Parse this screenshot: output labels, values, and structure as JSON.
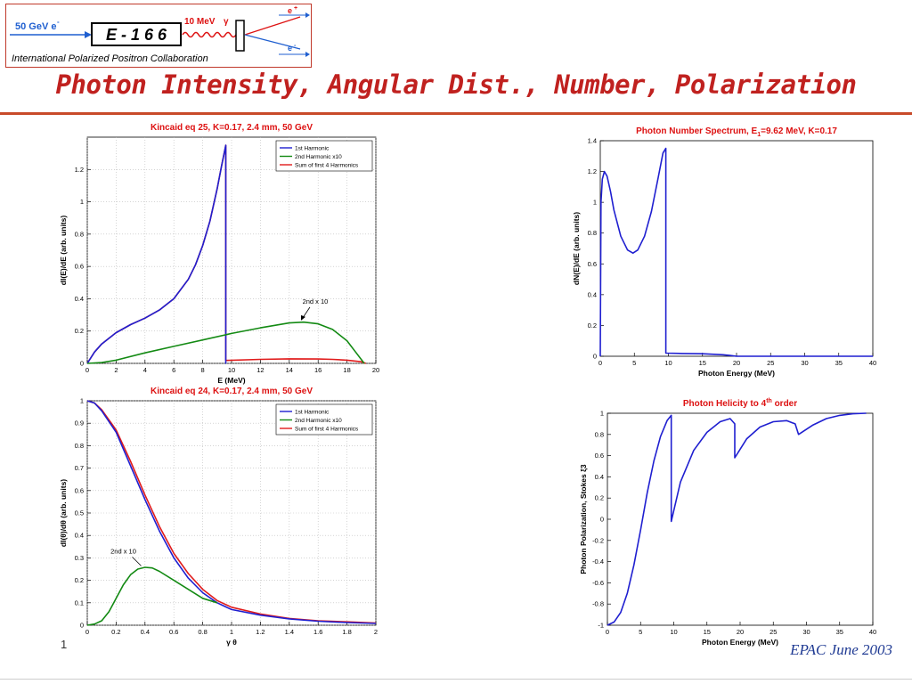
{
  "header": {
    "beam_label": "50 GeV e",
    "beam_sup": "-",
    "experiment": "E - 1 6 6",
    "photon_label": "10 MeV",
    "photon_sym": "γ",
    "positron": "e",
    "positron_sup": "+",
    "electron": "e",
    "electron_sup": "-",
    "collaboration": "International Polarized Positron Collaboration",
    "title": "Photon Intensity, Angular Dist., Number, Polarization"
  },
  "footer": {
    "page": "1",
    "event": "EPAC June 2003"
  },
  "colors": {
    "blue": "#1f1fd0",
    "green": "#138a13",
    "red": "#e01b1b",
    "title_red": "#c0211f"
  },
  "chart_data": [
    {
      "type": "line",
      "title": "Kincaid eq 25, K=0.17, 2.4 mm, 50 GeV",
      "xlabel": "E (MeV)",
      "ylabel": "dI(E)/dE (arb. units)",
      "xlim": [
        0,
        20
      ],
      "ylim": [
        0,
        1.4
      ],
      "xticks": [
        0,
        2,
        4,
        6,
        8,
        10,
        12,
        14,
        16,
        18,
        20
      ],
      "yticks": [
        0,
        0.2,
        0.4,
        0.6,
        0.8,
        1,
        1.2
      ],
      "grid": true,
      "legend_placement": "top-right",
      "legend": [
        {
          "text": "1st Harmonic",
          "color": "#1f1fd0"
        },
        {
          "text": "2nd Harmonic x10",
          "color": "#138a13"
        },
        {
          "text": "Sum of first 4 Harmonics",
          "color": "#e01b1b"
        }
      ],
      "annotation": {
        "text": "2nd x 10",
        "x": 15.8,
        "y": 0.37
      },
      "series": [
        {
          "color": "#e01b1b",
          "x": [
            0,
            0.5,
            1,
            2,
            3,
            4,
            5,
            6,
            7,
            7.5,
            8,
            8.5,
            9,
            9.3,
            9.6,
            9.6,
            9.62,
            12,
            14,
            16,
            17,
            18,
            19,
            19.3
          ],
          "y": [
            0,
            0.07,
            0.12,
            0.19,
            0.24,
            0.28,
            0.33,
            0.4,
            0.52,
            0.61,
            0.73,
            0.88,
            1.08,
            1.22,
            1.35,
            0.02,
            0.018,
            0.025,
            0.028,
            0.027,
            0.025,
            0.02,
            0.01,
            0
          ]
        },
        {
          "color": "#1f1fd0",
          "x": [
            0,
            0.5,
            1,
            2,
            3,
            4,
            5,
            6,
            7,
            7.5,
            8,
            8.5,
            9,
            9.3,
            9.6,
            9.6,
            9.62
          ],
          "y": [
            0,
            0.07,
            0.12,
            0.19,
            0.24,
            0.28,
            0.33,
            0.4,
            0.52,
            0.61,
            0.73,
            0.88,
            1.08,
            1.22,
            1.35,
            0,
            0
          ]
        },
        {
          "color": "#138a13",
          "x": [
            0,
            1,
            2,
            4,
            6,
            8,
            10,
            12,
            14,
            15,
            16,
            17,
            18,
            18.6,
            19.2
          ],
          "y": [
            0,
            0.005,
            0.02,
            0.065,
            0.105,
            0.145,
            0.185,
            0.22,
            0.25,
            0.255,
            0.245,
            0.21,
            0.14,
            0.07,
            0
          ]
        }
      ]
    },
    {
      "type": "line",
      "title": "Photon Number Spectrum, E1=9.62 MeV, K=0.17",
      "title_main": "Photon Number Spectrum, E",
      "title_sub": "1",
      "title_rest": "=9.62 MeV, K=0.17",
      "xlabel": "Photon Energy (MeV)",
      "ylabel": "dN(E)/dE (arb. units)",
      "xlim": [
        0,
        40
      ],
      "ylim": [
        0,
        1.4
      ],
      "xticks": [
        0,
        5,
        10,
        15,
        20,
        25,
        30,
        35,
        40
      ],
      "yticks": [
        0,
        0.2,
        0.4,
        0.6,
        0.8,
        1,
        1.2,
        1.4
      ],
      "grid": false,
      "series": [
        {
          "color": "#1f1fd0",
          "x": [
            0,
            0.1,
            0.3,
            0.6,
            1,
            1.5,
            2,
            3,
            4,
            4.8,
            5.5,
            6.5,
            7.5,
            8.5,
            9.2,
            9.62,
            9.62,
            12,
            15,
            18,
            19,
            20,
            40
          ],
          "y": [
            0,
            1.0,
            1.15,
            1.2,
            1.17,
            1.07,
            0.95,
            0.78,
            0.69,
            0.67,
            0.69,
            0.78,
            0.94,
            1.16,
            1.32,
            1.35,
            0.02,
            0.018,
            0.016,
            0.01,
            0.005,
            0,
            0
          ]
        }
      ]
    },
    {
      "type": "line",
      "title": "Kincaid eq 24, K=0.17, 2.4 mm, 50 GeV",
      "xlabel": "γ θ",
      "ylabel": "dI(θ)/dθ (arb. units)",
      "xlim": [
        0,
        2
      ],
      "ylim": [
        0,
        1
      ],
      "xticks": [
        0,
        0.2,
        0.4,
        0.6,
        0.8,
        1,
        1.2,
        1.4,
        1.6,
        1.8,
        2
      ],
      "yticks": [
        0,
        0.1,
        0.2,
        0.3,
        0.4,
        0.5,
        0.6,
        0.7,
        0.8,
        0.9,
        1
      ],
      "grid": true,
      "legend_placement": "top-right",
      "legend": [
        {
          "text": "1st Harmonic",
          "color": "#1f1fd0"
        },
        {
          "text": "2nd Harmonic x10",
          "color": "#138a13"
        },
        {
          "text": "Sum of first 4 Harmonics",
          "color": "#e01b1b"
        }
      ],
      "annotation": {
        "text": "2nd x 10",
        "x": 0.25,
        "y": 0.32
      },
      "series": [
        {
          "color": "#e01b1b",
          "x": [
            0,
            0.05,
            0.1,
            0.2,
            0.3,
            0.4,
            0.5,
            0.6,
            0.7,
            0.8,
            0.9,
            1.0,
            1.2,
            1.4,
            1.6,
            1.8,
            2.0
          ],
          "y": [
            1,
            0.99,
            0.96,
            0.87,
            0.73,
            0.58,
            0.44,
            0.32,
            0.23,
            0.16,
            0.11,
            0.08,
            0.05,
            0.03,
            0.02,
            0.015,
            0.01
          ]
        },
        {
          "color": "#1f1fd0",
          "x": [
            0,
            0.05,
            0.1,
            0.2,
            0.3,
            0.4,
            0.5,
            0.6,
            0.7,
            0.8,
            0.9,
            1.0,
            1.2,
            1.4,
            1.6,
            1.8,
            2.0
          ],
          "y": [
            1,
            0.99,
            0.955,
            0.86,
            0.71,
            0.56,
            0.42,
            0.3,
            0.21,
            0.145,
            0.1,
            0.07,
            0.045,
            0.028,
            0.018,
            0.012,
            0.008
          ]
        },
        {
          "color": "#138a13",
          "x": [
            0,
            0.05,
            0.1,
            0.15,
            0.2,
            0.25,
            0.3,
            0.35,
            0.4,
            0.45,
            0.5,
            0.6,
            0.7,
            0.8,
            0.9
          ],
          "y": [
            0,
            0.005,
            0.02,
            0.06,
            0.12,
            0.18,
            0.225,
            0.25,
            0.258,
            0.255,
            0.24,
            0.2,
            0.16,
            0.12,
            0.1
          ]
        }
      ]
    },
    {
      "type": "line",
      "title": "Photon Helicity to 4th order",
      "title_main": "Photon Helicity to 4",
      "title_sup": "th",
      "title_rest": " order",
      "xlabel": "Photon Energy (MeV)",
      "ylabel": "Photon Polarization, Stokes ξ3",
      "xlim": [
        0,
        40
      ],
      "ylim": [
        -1,
        1
      ],
      "xticks": [
        0,
        5,
        10,
        15,
        20,
        25,
        30,
        35,
        40
      ],
      "yticks": [
        -1,
        -0.8,
        -0.6,
        -0.4,
        -0.2,
        0,
        0.2,
        0.4,
        0.6,
        0.8,
        1
      ],
      "grid": false,
      "series": [
        {
          "color": "#1f1fd0",
          "x": [
            0,
            1,
            2,
            3,
            4,
            5,
            6,
            7,
            8,
            9,
            9.62,
            9.62,
            11,
            13,
            15,
            17,
            18.5,
            19.2,
            19.2,
            21,
            23,
            25,
            27,
            28.3,
            28.8,
            28.8,
            31,
            33,
            35,
            37,
            39
          ],
          "y": [
            -1,
            -0.97,
            -0.88,
            -0.7,
            -0.43,
            -0.1,
            0.25,
            0.55,
            0.78,
            0.93,
            0.98,
            -0.02,
            0.35,
            0.65,
            0.82,
            0.92,
            0.95,
            0.9,
            0.58,
            0.76,
            0.87,
            0.92,
            0.93,
            0.9,
            0.8,
            0.8,
            0.89,
            0.95,
            0.98,
            0.995,
            1.0
          ]
        }
      ]
    }
  ]
}
